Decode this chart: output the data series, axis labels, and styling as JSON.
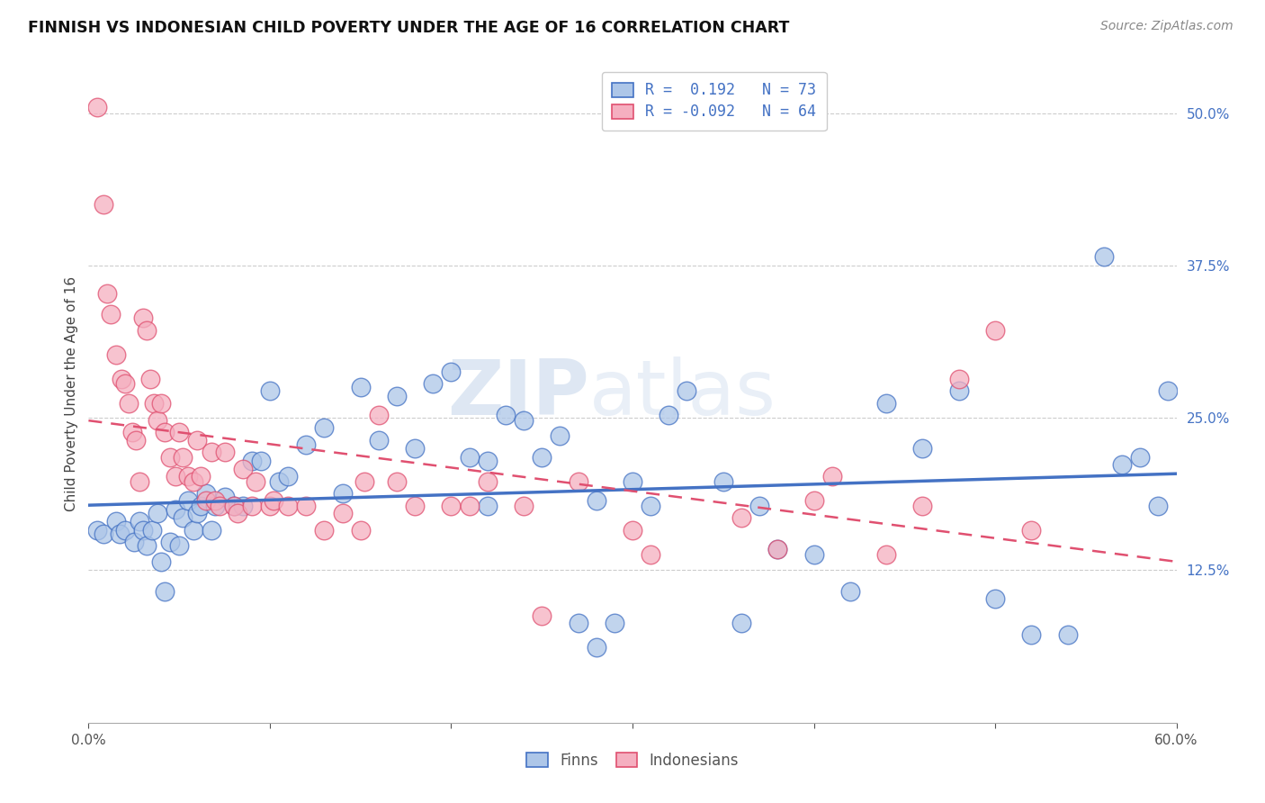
{
  "title": "FINNISH VS INDONESIAN CHILD POVERTY UNDER THE AGE OF 16 CORRELATION CHART",
  "source": "Source: ZipAtlas.com",
  "ylabel": "Child Poverty Under the Age of 16",
  "ytick_labels": [
    "12.5%",
    "25.0%",
    "37.5%",
    "50.0%"
  ],
  "ytick_values": [
    0.125,
    0.25,
    0.375,
    0.5
  ],
  "xlim": [
    0.0,
    0.6
  ],
  "ylim": [
    0.0,
    0.54
  ],
  "legend_r_finn": " 0.192",
  "legend_n_finn": "73",
  "legend_r_indo": "-0.092",
  "legend_n_indo": "64",
  "legend_label_finn": "Finns",
  "legend_label_indo": "Indonesians",
  "color_finn": "#adc6e8",
  "color_indo": "#f5afc0",
  "color_finn_line": "#4472c4",
  "color_indo_line": "#e05070",
  "watermark_1": "ZIP",
  "watermark_2": "atlas",
  "finn_x": [
    0.005,
    0.008,
    0.015,
    0.017,
    0.02,
    0.025,
    0.028,
    0.03,
    0.032,
    0.035,
    0.038,
    0.04,
    0.042,
    0.045,
    0.048,
    0.05,
    0.052,
    0.055,
    0.058,
    0.06,
    0.062,
    0.065,
    0.068,
    0.07,
    0.075,
    0.08,
    0.085,
    0.09,
    0.095,
    0.1,
    0.105,
    0.11,
    0.12,
    0.13,
    0.14,
    0.15,
    0.16,
    0.17,
    0.18,
    0.19,
    0.2,
    0.21,
    0.22,
    0.23,
    0.24,
    0.25,
    0.26,
    0.27,
    0.28,
    0.29,
    0.3,
    0.32,
    0.33,
    0.35,
    0.37,
    0.38,
    0.4,
    0.42,
    0.44,
    0.46,
    0.48,
    0.5,
    0.52,
    0.54,
    0.56,
    0.57,
    0.58,
    0.59,
    0.595,
    0.36,
    0.28,
    0.22,
    0.31
  ],
  "finn_y": [
    0.158,
    0.155,
    0.165,
    0.155,
    0.158,
    0.148,
    0.165,
    0.158,
    0.145,
    0.158,
    0.172,
    0.132,
    0.108,
    0.148,
    0.175,
    0.145,
    0.168,
    0.182,
    0.158,
    0.172,
    0.178,
    0.188,
    0.158,
    0.178,
    0.185,
    0.178,
    0.178,
    0.215,
    0.215,
    0.272,
    0.198,
    0.202,
    0.228,
    0.242,
    0.188,
    0.275,
    0.232,
    0.268,
    0.225,
    0.278,
    0.288,
    0.218,
    0.215,
    0.252,
    0.248,
    0.218,
    0.235,
    0.082,
    0.062,
    0.082,
    0.198,
    0.252,
    0.272,
    0.198,
    0.178,
    0.142,
    0.138,
    0.108,
    0.262,
    0.225,
    0.272,
    0.102,
    0.072,
    0.072,
    0.382,
    0.212,
    0.218,
    0.178,
    0.272,
    0.082,
    0.182,
    0.178,
    0.178
  ],
  "indo_x": [
    0.005,
    0.008,
    0.01,
    0.012,
    0.015,
    0.018,
    0.02,
    0.022,
    0.024,
    0.026,
    0.028,
    0.03,
    0.032,
    0.034,
    0.036,
    0.038,
    0.04,
    0.042,
    0.045,
    0.048,
    0.05,
    0.052,
    0.055,
    0.058,
    0.06,
    0.062,
    0.065,
    0.068,
    0.07,
    0.072,
    0.075,
    0.08,
    0.082,
    0.085,
    0.09,
    0.092,
    0.1,
    0.102,
    0.11,
    0.12,
    0.13,
    0.14,
    0.15,
    0.152,
    0.16,
    0.17,
    0.18,
    0.2,
    0.21,
    0.22,
    0.24,
    0.25,
    0.27,
    0.3,
    0.31,
    0.36,
    0.38,
    0.4,
    0.41,
    0.44,
    0.46,
    0.48,
    0.5,
    0.52
  ],
  "indo_y": [
    0.505,
    0.425,
    0.352,
    0.335,
    0.302,
    0.282,
    0.278,
    0.262,
    0.238,
    0.232,
    0.198,
    0.332,
    0.322,
    0.282,
    0.262,
    0.248,
    0.262,
    0.238,
    0.218,
    0.202,
    0.238,
    0.218,
    0.202,
    0.198,
    0.232,
    0.202,
    0.182,
    0.222,
    0.182,
    0.178,
    0.222,
    0.178,
    0.172,
    0.208,
    0.178,
    0.198,
    0.178,
    0.182,
    0.178,
    0.178,
    0.158,
    0.172,
    0.158,
    0.198,
    0.252,
    0.198,
    0.178,
    0.178,
    0.178,
    0.198,
    0.178,
    0.088,
    0.198,
    0.158,
    0.138,
    0.168,
    0.142,
    0.182,
    0.202,
    0.138,
    0.178,
    0.282,
    0.322,
    0.158
  ]
}
